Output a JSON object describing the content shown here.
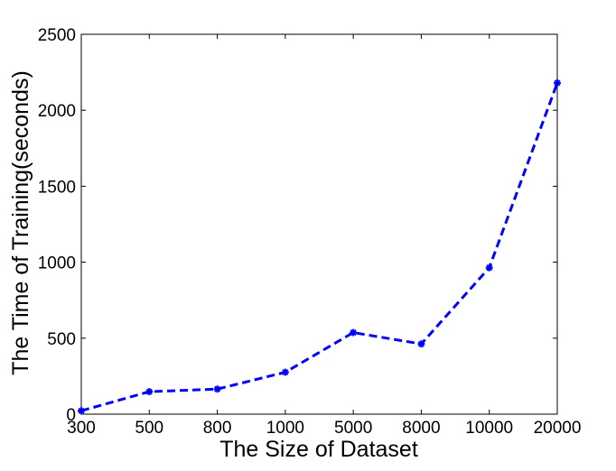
{
  "chart_data": {
    "type": "line",
    "title": "",
    "xlabel": "The Size of Dataset",
    "ylabel": "The Time of Training(seconds)",
    "categories": [
      "300",
      "500",
      "800",
      "1000",
      "5000",
      "8000",
      "10000",
      "20000"
    ],
    "ylim": [
      0,
      2500
    ],
    "yticks": [
      "0",
      "500",
      "1000",
      "1500",
      "2000",
      "2500"
    ],
    "grid": false,
    "series": [
      {
        "values": [
          22,
          148,
          165,
          276,
          537,
          462,
          964,
          2180
        ],
        "color": "#0000ff",
        "line_style": "dashed",
        "marker": "asterisk"
      }
    ]
  }
}
